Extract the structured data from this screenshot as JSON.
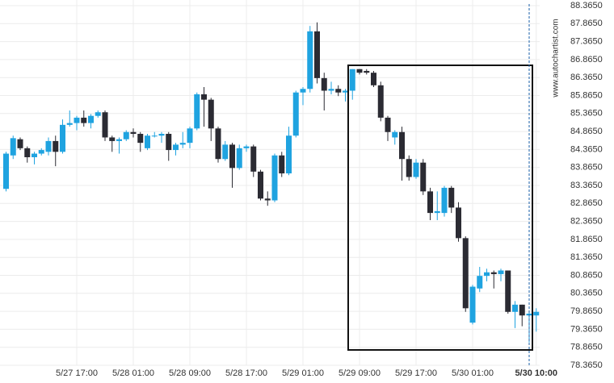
{
  "chart_data": {
    "type": "candlestick",
    "watermark": "www.autochartist.com",
    "up_color": "#1fa3e0",
    "down_color": "#2b2b33",
    "grid": true,
    "categories": [
      null,
      null,
      null,
      null,
      null,
      null,
      null,
      null,
      null,
      null,
      "5/27 17:00",
      null,
      null,
      null,
      null,
      null,
      null,
      null,
      "5/28 01:00",
      null,
      null,
      null,
      null,
      null,
      null,
      null,
      "5/28 09:00",
      null,
      null,
      null,
      null,
      null,
      null,
      null,
      "5/28 17:00",
      null,
      null,
      null,
      null,
      null,
      null,
      null,
      "5/29 01:00",
      null,
      null,
      null,
      null,
      null,
      null,
      null,
      "5/29 09:00",
      null,
      null,
      null,
      null,
      null,
      null,
      null,
      "5/29 17:00",
      null,
      null,
      null,
      null,
      null,
      null,
      null,
      "5/30 01:00",
      null,
      null,
      null,
      null,
      null,
      null,
      null,
      null,
      "5/30 10:00"
    ],
    "series": [
      {
        "name": "open",
        "values": [
          83.27,
          84.2,
          84.65,
          84.4,
          84.15,
          84.25,
          84.3,
          84.6,
          84.3,
          85.05,
          85.1,
          85.25,
          85.1,
          85.3,
          85.4,
          84.7,
          84.6,
          84.65,
          84.85,
          84.8,
          84.4,
          84.75,
          84.75,
          84.8,
          84.35,
          84.5,
          84.55,
          84.95,
          85.9,
          85.75,
          84.95,
          84.1,
          84.5,
          83.85,
          84.4,
          84.45,
          83.75,
          83.0,
          82.95,
          84.2,
          83.7,
          84.75,
          85.95,
          86.05,
          87.65,
          86.35,
          86.0,
          86.05,
          85.95,
          86.0,
          86.6,
          86.55,
          86.5,
          86.15,
          85.25,
          84.7,
          84.85,
          84.1,
          83.6,
          84.0,
          83.2,
          82.6,
          82.6,
          83.3,
          82.75,
          81.9,
          79.55,
          80.5,
          80.85,
          80.95,
          80.9,
          81.0,
          79.85,
          80.05,
          79.75,
          79.75
        ]
      },
      {
        "name": "high",
        "values": [
          84.3,
          84.75,
          84.7,
          84.45,
          84.3,
          84.4,
          84.7,
          84.75,
          85.2,
          85.45,
          85.3,
          85.45,
          85.35,
          85.45,
          85.45,
          84.75,
          84.7,
          84.9,
          84.95,
          84.85,
          84.8,
          84.85,
          84.85,
          84.85,
          84.55,
          84.85,
          85.0,
          85.95,
          86.1,
          85.8,
          85.0,
          84.6,
          84.55,
          84.5,
          84.5,
          84.5,
          83.8,
          83.2,
          84.25,
          84.3,
          85.0,
          86.0,
          86.1,
          87.8,
          87.9,
          86.5,
          86.25,
          86.15,
          86.05,
          86.6,
          86.6,
          86.6,
          86.55,
          86.25,
          85.3,
          84.9,
          85.0,
          84.2,
          84.1,
          84.1,
          83.3,
          83.2,
          83.35,
          83.35,
          82.9,
          81.95,
          80.6,
          81.1,
          81.05,
          81.0,
          81.05,
          81.0,
          80.15,
          80.05,
          79.85,
          79.95
        ]
      },
      {
        "name": "low",
        "values": [
          83.2,
          84.1,
          84.35,
          84.0,
          83.95,
          84.2,
          84.2,
          83.9,
          84.25,
          85.0,
          84.9,
          85.0,
          84.95,
          85.25,
          84.6,
          84.3,
          84.25,
          84.6,
          84.7,
          84.3,
          84.35,
          84.7,
          84.55,
          84.05,
          84.2,
          84.4,
          84.4,
          84.9,
          85.0,
          84.6,
          84.0,
          84.05,
          83.3,
          83.8,
          84.3,
          83.6,
          82.95,
          82.8,
          82.9,
          83.6,
          83.65,
          84.7,
          85.6,
          85.95,
          86.2,
          85.45,
          85.9,
          85.85,
          85.7,
          85.75,
          86.45,
          86.45,
          86.1,
          85.15,
          84.6,
          84.5,
          83.5,
          83.5,
          83.55,
          83.1,
          82.4,
          82.4,
          82.5,
          82.6,
          81.8,
          79.85,
          79.5,
          80.4,
          80.7,
          80.5,
          80.7,
          79.8,
          79.4,
          79.45,
          79.0,
          79.3
        ]
      },
      {
        "name": "close",
        "values": [
          84.25,
          84.68,
          84.4,
          84.15,
          84.25,
          84.35,
          84.6,
          84.3,
          85.05,
          85.1,
          85.25,
          85.1,
          85.3,
          85.4,
          84.7,
          84.6,
          84.65,
          84.85,
          84.8,
          84.55,
          84.75,
          84.75,
          84.8,
          84.35,
          84.5,
          84.55,
          84.95,
          85.9,
          85.75,
          84.95,
          84.1,
          84.5,
          83.85,
          84.4,
          84.45,
          83.75,
          83.0,
          82.95,
          84.2,
          83.7,
          84.75,
          85.95,
          86.05,
          87.65,
          86.35,
          86.0,
          86.05,
          85.95,
          86.0,
          86.6,
          86.5,
          86.5,
          86.15,
          85.25,
          84.85,
          84.85,
          84.1,
          83.6,
          84.0,
          83.2,
          82.6,
          82.65,
          83.3,
          82.75,
          81.9,
          79.95,
          80.55,
          80.85,
          80.95,
          80.9,
          81.0,
          79.85,
          80.05,
          79.75,
          79.8,
          79.85
        ]
      }
    ],
    "ylim": [
      78.365,
      88.365
    ],
    "yticks": [
      {
        "value": 78.365,
        "label": "78.3650"
      },
      {
        "value": 78.865,
        "label": "78.8650"
      },
      {
        "value": 79.365,
        "label": "79.3650"
      },
      {
        "value": 79.865,
        "label": "79.8650"
      },
      {
        "value": 80.365,
        "label": "80.3650"
      },
      {
        "value": 80.865,
        "label": "80.8650"
      },
      {
        "value": 81.365,
        "label": "81.3650"
      },
      {
        "value": 81.865,
        "label": "81.8650"
      },
      {
        "value": 82.365,
        "label": "82.3650"
      },
      {
        "value": 82.865,
        "label": "82.8650"
      },
      {
        "value": 83.365,
        "label": "83.3650"
      },
      {
        "value": 83.865,
        "label": "83.8650"
      },
      {
        "value": 84.365,
        "label": "84.3650"
      },
      {
        "value": 84.865,
        "label": "84.8650"
      },
      {
        "value": 85.365,
        "label": "85.3650"
      },
      {
        "value": 85.865,
        "label": "85.8650"
      },
      {
        "value": 86.365,
        "label": "86.3650"
      },
      {
        "value": 86.865,
        "label": "86.8650"
      },
      {
        "value": 87.365,
        "label": "87.3650"
      },
      {
        "value": 87.865,
        "label": "87.8650"
      },
      {
        "value": 88.365,
        "label": "88.3650"
      }
    ]
  }
}
